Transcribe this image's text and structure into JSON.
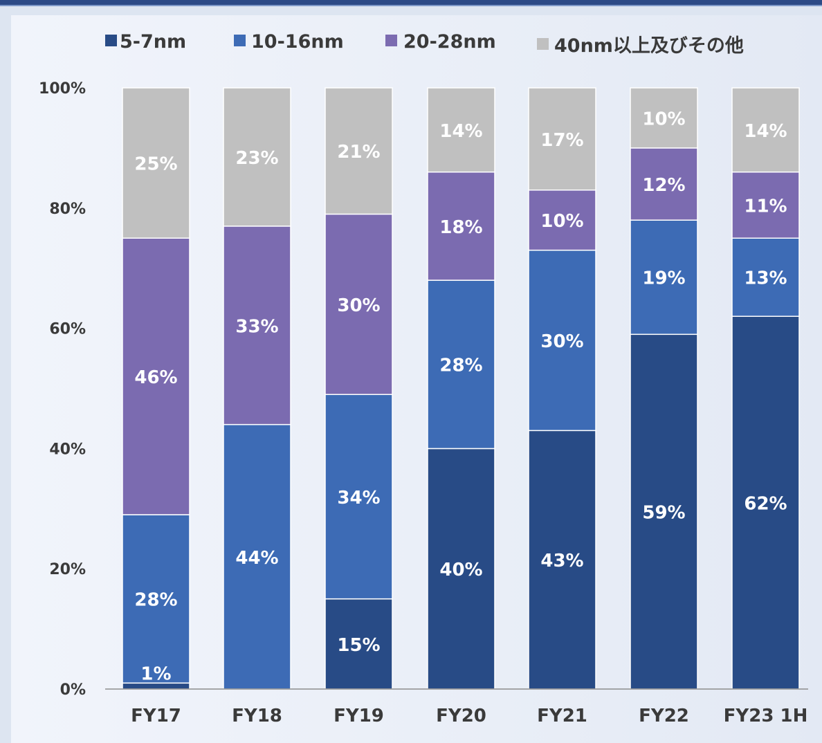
{
  "chart_data": {
    "type": "bar",
    "stacked": true,
    "categories": [
      "FY17",
      "FY18",
      "FY19",
      "FY20",
      "FY21",
      "FY22",
      "FY23 1H"
    ],
    "series": [
      {
        "name": "5-7nm",
        "color": "#284b86",
        "values": [
          1,
          0,
          15,
          40,
          43,
          59,
          62
        ],
        "labels": [
          "1%",
          "",
          "15%",
          "40%",
          "43%",
          "59%",
          "62%"
        ]
      },
      {
        "name": "10-16nm",
        "color": "#3d6bb5",
        "values": [
          28,
          44,
          34,
          28,
          30,
          19,
          13
        ],
        "labels": [
          "28%",
          "44%",
          "34%",
          "28%",
          "30%",
          "19%",
          "13%"
        ]
      },
      {
        "name": "20-28nm",
        "color": "#7b6bb0",
        "values": [
          46,
          33,
          30,
          18,
          10,
          12,
          11
        ],
        "labels": [
          "46%",
          "33%",
          "30%",
          "18%",
          "10%",
          "12%",
          "11%"
        ]
      },
      {
        "name": "40nm以上及びその他",
        "color": "#c0c0c0",
        "values": [
          25,
          23,
          21,
          14,
          17,
          10,
          14
        ],
        "labels": [
          "25%",
          "23%",
          "21%",
          "14%",
          "17%",
          "10%",
          "14%"
        ]
      }
    ],
    "y_ticks": [
      "0%",
      "20%",
      "40%",
      "60%",
      "80%",
      "100%"
    ],
    "ylim": [
      0,
      100
    ],
    "legend_position": "top",
    "grid": false
  }
}
